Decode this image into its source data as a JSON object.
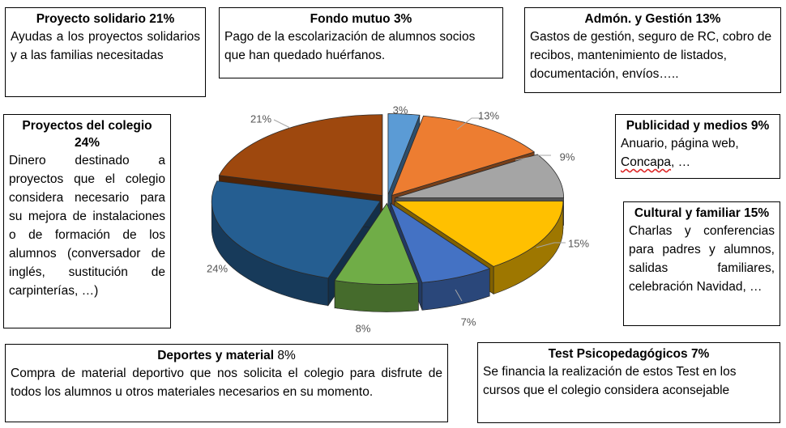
{
  "boxes": {
    "solidario": {
      "title": "Proyecto solidario 21%",
      "body": "Ayudas a los proyectos solidarios y a las familias necesitadas"
    },
    "fondo": {
      "title": "Fondo mutuo 3%",
      "body": "Pago de la escolarización de alumnos socios que han quedado huérfanos."
    },
    "admon": {
      "title": "Admón. y Gestión 13%",
      "body": "Gastos de gestión, seguro de RC, cobro de recibos, mantenimiento de listados, documentación, envíos….."
    },
    "colegio": {
      "title": "Proyectos del colegio 24%",
      "body": "Dinero destinado a proyectos que el colegio considera necesario para su mejora de instalaciones o de formación de los alumnos (conversador de inglés, sustitución de carpinterías, …)"
    },
    "publicidad": {
      "title": "Publicidad y medios 9%",
      "body_pre": "Anuario, página web, ",
      "body_underlined": "Concapa",
      "body_post": ", …"
    },
    "cultural": {
      "title": "Cultural y familiar 15%",
      "body": "Charlas y conferencias para padres y alumnos, salidas familiares, celebración Navidad, …"
    },
    "deportes": {
      "title_bold": "Deportes y material",
      "title_rest": " 8%",
      "body": "Compra de material deportivo que nos solicita el colegio para disfrute de todos los alumnos u otros materiales necesarios en su momento."
    },
    "test": {
      "title": "Test Psicopedagógicos 7%",
      "body": "Se financia la realización de estos Test en los cursos que el colegio considera aconsejable"
    }
  },
  "chart_data": {
    "type": "pie",
    "style": "3d-exploded",
    "start": "top, clockwise",
    "slices": [
      {
        "category": "Fondo mutuo",
        "value": 3,
        "label": "3%",
        "color": "#5b9bd5"
      },
      {
        "category": "Admón. y Gestión",
        "value": 13,
        "label": "13%",
        "color": "#ed7d31"
      },
      {
        "category": "Publicidad y medios",
        "value": 9,
        "label": "9%",
        "color": "#a5a5a5"
      },
      {
        "category": "Cultural y familiar",
        "value": 15,
        "label": "15%",
        "color": "#ffc000"
      },
      {
        "category": "Test Psicopedagógicos",
        "value": 7,
        "label": "7%",
        "color": "#4472c4"
      },
      {
        "category": "Deportes y material",
        "value": 8,
        "label": "8%",
        "color": "#70ad47"
      },
      {
        "category": "Proyectos del colegio",
        "value": 24,
        "label": "24%",
        "color": "#255e91"
      },
      {
        "category": "Proyecto solidario",
        "value": 21,
        "label": "21%",
        "color": "#9e480e"
      }
    ]
  }
}
